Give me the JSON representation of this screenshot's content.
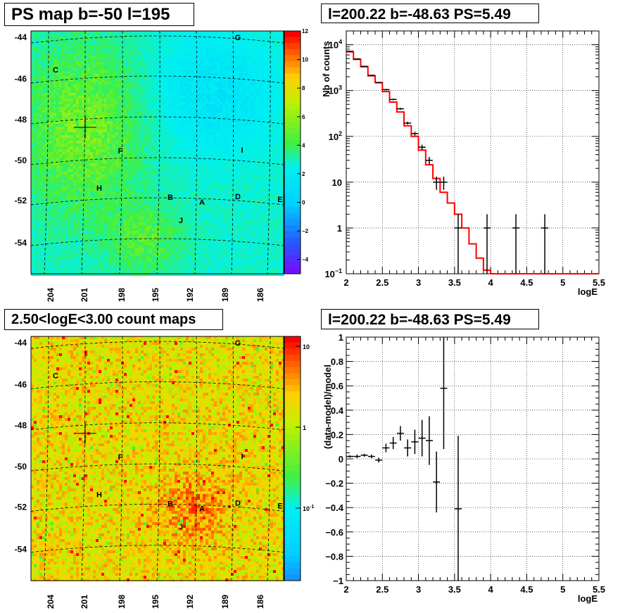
{
  "titles": {
    "ps_map": "PS map b=-50 l=195",
    "count_map": "2.50<logE<3.00 count maps",
    "spectrum": "l=200.22 b=-48.63 PS=5.49",
    "residual": "l=200.22 b=-48.63 PS=5.49"
  },
  "colors": {
    "model_line": "#ff0000",
    "data": "#000000",
    "frame": "#000000",
    "grid": "#000000"
  },
  "chart_data": [
    {
      "type": "heatmap",
      "title": "PS map b=-50 l=195",
      "xlabel": "",
      "ylabel": "",
      "x_ticks": [
        "204",
        "201",
        "198",
        "195",
        "192",
        "189",
        "186"
      ],
      "y_ticks": [
        "-44",
        "-46",
        "-48",
        "-50",
        "-52",
        "-54"
      ],
      "colorbar": {
        "scale": "linear",
        "range": [
          -5,
          12
        ],
        "ticks": [
          "12",
          "10",
          "8",
          "6",
          "4",
          "2",
          "0",
          "−2",
          "−4"
        ]
      },
      "sources": [
        "A",
        "B",
        "C",
        "D",
        "E",
        "F",
        "G",
        "H",
        "I",
        "J"
      ],
      "marker": {
        "l": 200.22,
        "b": -48.63
      },
      "grid": true
    },
    {
      "type": "line",
      "title": "l=200.22 b=-48.63 PS=5.49",
      "xlabel": "logE",
      "ylabel": "Nb of counts",
      "xlim": [
        2,
        5.5
      ],
      "ylim": [
        0.1,
        20000
      ],
      "yscale": "log",
      "x_ticks": [
        "2",
        "2.5",
        "3",
        "3.5",
        "4",
        "4.5",
        "5",
        "5.5"
      ],
      "y_ticks": [
        "10^4",
        "10^3",
        "10^2",
        "10",
        "1",
        "10^-1"
      ],
      "grid": true,
      "series": [
        {
          "kind": "model_step",
          "edges": [
            2.0,
            2.1,
            2.2,
            2.3,
            2.4,
            2.5,
            2.6,
            2.7,
            2.8,
            2.9,
            3.0,
            3.1,
            3.2,
            3.3,
            3.4,
            3.5,
            3.6,
            3.7,
            3.8,
            3.9,
            4.0,
            5.5
          ],
          "values": [
            7000,
            4800,
            3300,
            2100,
            1500,
            950,
            560,
            340,
            170,
            100,
            50,
            24,
            12,
            6,
            3.5,
            2.0,
            1.0,
            0.45,
            0.22,
            0.12,
            0.09
          ]
        },
        {
          "kind": "data_points",
          "x": [
            2.05,
            2.15,
            2.25,
            2.35,
            2.45,
            2.55,
            2.65,
            2.75,
            2.85,
            2.95,
            3.05,
            3.15,
            3.25,
            3.35,
            3.55,
            3.95,
            4.35,
            4.75
          ],
          "y": [
            7200,
            4900,
            3380,
            2150,
            1480,
            1050,
            640,
            400,
            195,
            115,
            58,
            30,
            10,
            10,
            1,
            1,
            1,
            1
          ],
          "yerr": [
            85,
            70,
            58,
            46,
            38,
            32,
            25,
            20,
            14,
            11,
            7.6,
            5.5,
            3.2,
            3.2,
            1,
            1,
            1,
            1
          ]
        }
      ]
    },
    {
      "type": "heatmap",
      "title": "2.50<logE<3.00 count maps",
      "xlabel": "",
      "ylabel": "",
      "x_ticks": [
        "204",
        "201",
        "198",
        "195",
        "192",
        "189",
        "186"
      ],
      "y_ticks": [
        "-44",
        "-46",
        "-48",
        "-50",
        "-52",
        "-54"
      ],
      "colorbar": {
        "scale": "log",
        "range": [
          0.03,
          15
        ],
        "ticks": [
          "10",
          "1",
          "10^-1"
        ]
      },
      "sources": [
        "A",
        "B",
        "C",
        "D",
        "E",
        "F",
        "G",
        "H",
        "I",
        "J"
      ],
      "marker": {
        "l": 200.22,
        "b": -48.63
      },
      "grid": true
    },
    {
      "type": "scatter",
      "title": "l=200.22 b=-48.63 PS=5.49",
      "xlabel": "logE",
      "ylabel": "(data-model)/model",
      "xlim": [
        2,
        5.5
      ],
      "ylim": [
        -1,
        1
      ],
      "x_ticks": [
        "2",
        "2.5",
        "3",
        "3.5",
        "4",
        "4.5",
        "5",
        "5.5"
      ],
      "y_ticks": [
        "1",
        "0.8",
        "0.6",
        "0.4",
        "0.2",
        "0",
        "-0.2",
        "-0.4",
        "-0.6",
        "-0.8",
        "-1"
      ],
      "grid": true,
      "series": [
        {
          "kind": "data_points",
          "x": [
            2.05,
            2.15,
            2.25,
            2.35,
            2.45,
            2.55,
            2.65,
            2.75,
            2.85,
            2.95,
            3.05,
            3.15,
            3.25,
            3.35,
            3.55
          ],
          "y": [
            0.02,
            0.02,
            0.03,
            0.02,
            -0.01,
            0.09,
            0.13,
            0.21,
            0.09,
            0.14,
            0.17,
            0.15,
            -0.19,
            0.58,
            -0.41
          ],
          "yerr": [
            0.01,
            0.015,
            0.012,
            0.015,
            0.02,
            0.035,
            0.05,
            0.06,
            0.07,
            0.1,
            0.15,
            0.2,
            0.25,
            0.5,
            0.6
          ]
        }
      ]
    }
  ]
}
